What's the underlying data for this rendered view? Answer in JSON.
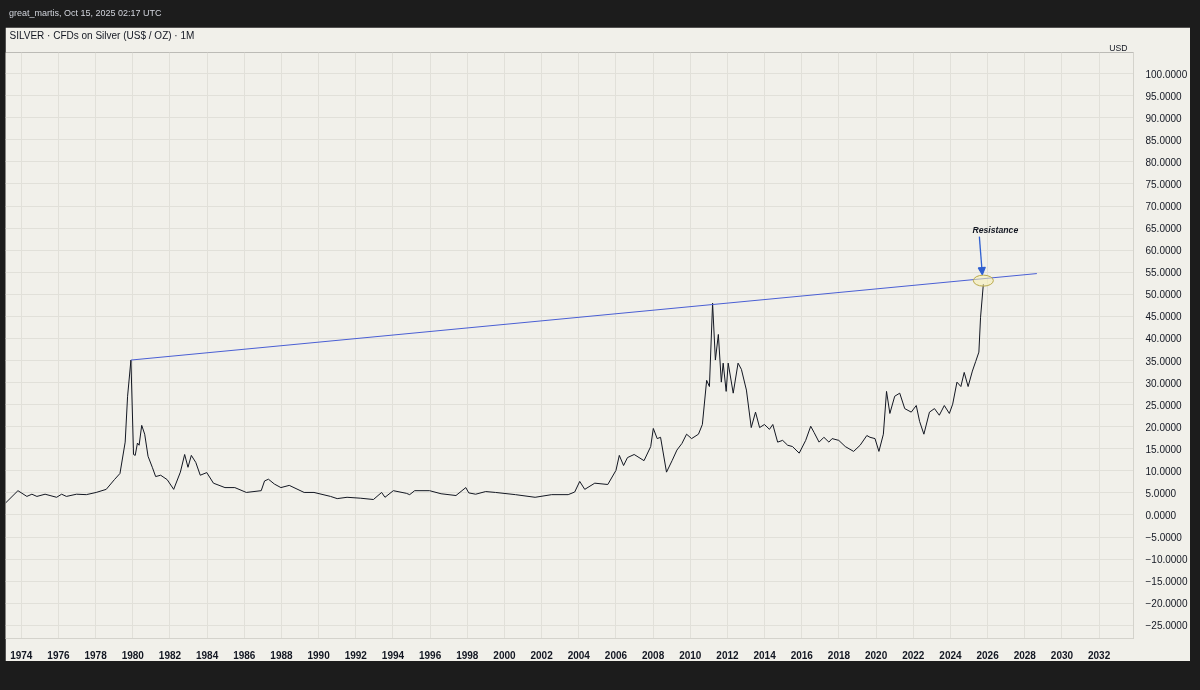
{
  "chart_data": {
    "type": "line",
    "title": "SILVER · CFDs on Silver (US$ / OZ) · 1M",
    "ylabel": "USD",
    "annotations": [
      "great_martis, Oct 15, 2025 02:17 UTC",
      {
        "text": "Resistance",
        "x": 2025.77,
        "y": 53.1
      }
    ],
    "xlim": [
      1973.15,
      2033.85
    ],
    "ylim": [
      -28.0,
      104.8
    ],
    "xticks": [
      1974,
      1976,
      1978,
      1980,
      1982,
      1984,
      1986,
      1988,
      1990,
      1992,
      1994,
      1996,
      1998,
      2000,
      2002,
      2004,
      2006,
      2008,
      2010,
      2012,
      2014,
      2016,
      2018,
      2020,
      2022,
      2024,
      2026,
      2028,
      2030,
      2032
    ],
    "yticks": [
      {
        "value": -25,
        "label": "−25.0000"
      },
      {
        "value": -20,
        "label": "−20.0000"
      },
      {
        "value": -15,
        "label": "−15.0000"
      },
      {
        "value": -10,
        "label": "−10.0000"
      },
      {
        "value": -5,
        "label": "−5.0000"
      },
      {
        "value": 0,
        "label": "0.0000"
      },
      {
        "value": 5,
        "label": "5.0000"
      },
      {
        "value": 10,
        "label": "10.0000"
      },
      {
        "value": 15,
        "label": "15.0000"
      },
      {
        "value": 20,
        "label": "20.0000"
      },
      {
        "value": 25,
        "label": "25.0000"
      },
      {
        "value": 30,
        "label": "30.0000"
      },
      {
        "value": 35,
        "label": "35.0000"
      },
      {
        "value": 40,
        "label": "40.0000"
      },
      {
        "value": 45,
        "label": "45.0000"
      },
      {
        "value": 50,
        "label": "50.0000"
      },
      {
        "value": 55,
        "label": "55.0000"
      },
      {
        "value": 60,
        "label": "60.0000"
      },
      {
        "value": 65,
        "label": "65.0000"
      },
      {
        "value": 70,
        "label": "70.0000"
      },
      {
        "value": 75,
        "label": "75.0000"
      },
      {
        "value": 80,
        "label": "80.0000"
      },
      {
        "value": 85,
        "label": "85.0000"
      },
      {
        "value": 90,
        "label": "90.0000"
      },
      {
        "value": 95,
        "label": "95.0000"
      },
      {
        "value": 100,
        "label": "100.0000"
      }
    ],
    "grid": true,
    "series": [
      {
        "color": "#131722",
        "x": [
          1973.15,
          1973.82,
          1974.3,
          1974.57,
          1974.84,
          1975.28,
          1975.9,
          1976.17,
          1976.43,
          1976.97,
          1977.5,
          1978.03,
          1978.57,
          1979.01,
          1979.31,
          1979.59,
          1979.72,
          1979.9,
          1980.04,
          1980.13,
          1980.25,
          1980.34,
          1980.48,
          1980.64,
          1980.82,
          1981.05,
          1981.23,
          1981.5,
          1981.85,
          1982.2,
          1982.56,
          1982.79,
          1982.97,
          1983.15,
          1983.39,
          1983.63,
          1983.98,
          1984.34,
          1984.96,
          1985.49,
          1986.11,
          1986.91,
          1987.09,
          1987.3,
          1987.62,
          1987.97,
          1988.42,
          1989.22,
          1989.75,
          1990.64,
          1991.0,
          1991.53,
          1992.24,
          1992.95,
          1993.39,
          1993.57,
          1994.02,
          1994.72,
          1994.9,
          1995.17,
          1995.97,
          1996.59,
          1997.39,
          1997.92,
          1998.08,
          1998.45,
          1998.99,
          1999.52,
          2000.59,
          2001.65,
          2002.54,
          2003.43,
          2003.78,
          2004.05,
          2004.32,
          2004.86,
          2005.56,
          2006.0,
          2006.18,
          2006.41,
          2006.62,
          2006.98,
          2007.51,
          2007.87,
          2008.01,
          2008.22,
          2008.4,
          2008.72,
          2009.02,
          2009.28,
          2009.55,
          2009.8,
          2010.07,
          2010.44,
          2010.65,
          2010.88,
          2011.03,
          2011.2,
          2011.35,
          2011.51,
          2011.67,
          2011.77,
          2011.93,
          2012.04,
          2012.31,
          2012.57,
          2012.75,
          2013.02,
          2013.28,
          2013.51,
          2013.73,
          2013.99,
          2014.26,
          2014.44,
          2014.7,
          2014.97,
          2015.24,
          2015.5,
          2015.86,
          2016.21,
          2016.48,
          2016.66,
          2016.93,
          2017.19,
          2017.46,
          2017.63,
          2017.99,
          2018.34,
          2018.79,
          2019.14,
          2019.5,
          2019.67,
          2019.94,
          2020.15,
          2020.39,
          2020.56,
          2020.74,
          2021.0,
          2021.27,
          2021.54,
          2021.89,
          2022.16,
          2022.34,
          2022.57,
          2022.87,
          2023.14,
          2023.4,
          2023.67,
          2023.94,
          2024.12,
          2024.35,
          2024.56,
          2024.74,
          2024.95,
          2025.18,
          2025.36,
          2025.53,
          2025.62,
          2025.77
        ],
        "values": [
          2.7,
          5.5,
          4.2,
          4.7,
          4.2,
          4.7,
          4.0,
          4.7,
          4.2,
          4.7,
          4.6,
          5.1,
          5.8,
          8.0,
          9.4,
          16.5,
          26.9,
          35.1,
          13.7,
          13.5,
          16.3,
          15.8,
          20.3,
          18.3,
          13.3,
          10.8,
          8.7,
          9.0,
          8.0,
          5.8,
          9.7,
          13.7,
          10.8,
          13.5,
          11.9,
          9.0,
          9.6,
          7.2,
          6.2,
          6.2,
          5.1,
          5.5,
          7.7,
          8.1,
          7.0,
          6.2,
          6.7,
          5.1,
          5.1,
          4.2,
          3.7,
          4.0,
          3.8,
          3.5,
          5.1,
          4.0,
          5.5,
          4.9,
          4.6,
          5.5,
          5.5,
          4.8,
          4.4,
          6.2,
          5.0,
          4.7,
          5.3,
          5.1,
          4.6,
          4.0,
          4.6,
          4.6,
          5.2,
          7.6,
          5.8,
          7.2,
          6.9,
          10.1,
          13.5,
          11.2,
          13.0,
          13.7,
          12.3,
          15.5,
          19.6,
          17.3,
          17.6,
          9.7,
          12.3,
          14.7,
          16.2,
          18.3,
          17.3,
          18.3,
          20.5,
          30.5,
          29.1,
          48.0,
          35.1,
          40.9,
          30.1,
          34.4,
          28.0,
          34.4,
          27.6,
          34.4,
          33.0,
          28.3,
          19.8,
          23.3,
          19.8,
          20.5,
          19.4,
          20.5,
          16.5,
          16.9,
          15.8,
          15.5,
          14.0,
          16.9,
          20.1,
          18.7,
          16.5,
          17.6,
          16.5,
          17.3,
          16.9,
          15.5,
          14.4,
          15.8,
          18.0,
          17.6,
          17.3,
          14.4,
          18.3,
          28.0,
          23.0,
          26.9,
          27.6,
          24.1,
          23.3,
          24.8,
          21.2,
          18.3,
          23.3,
          24.1,
          22.6,
          24.8,
          23.0,
          25.1,
          30.1,
          29.1,
          32.3,
          29.1,
          32.6,
          34.8,
          36.9,
          44.8,
          52.3
        ]
      },
      {
        "color": "#4a5fd4",
        "x": [
          1979.9,
          2028.65
        ],
        "values": [
          35.1,
          54.7
        ]
      }
    ]
  }
}
